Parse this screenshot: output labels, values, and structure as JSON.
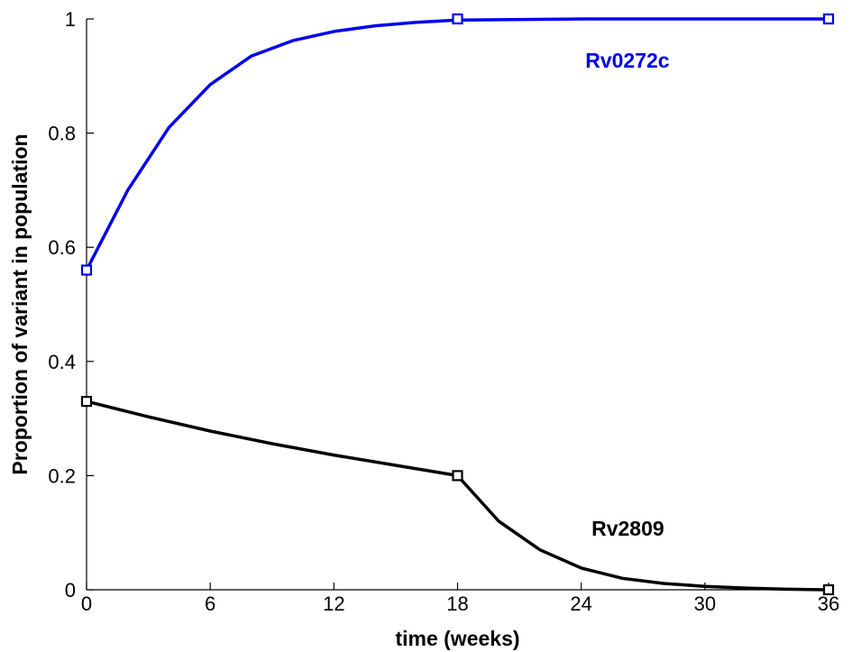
{
  "chart_data": {
    "type": "line",
    "title": "",
    "xlabel": "time (weeks)",
    "ylabel": "Proportion of variant in population",
    "xlim": [
      0,
      36
    ],
    "ylim": [
      0,
      1
    ],
    "xticks": [
      0,
      6,
      12,
      18,
      24,
      30,
      36
    ],
    "yticks": [
      0,
      0.2,
      0.4,
      0.6,
      0.8,
      1
    ],
    "ytick_labels": [
      "0",
      "0.2",
      "0.4",
      "0.6",
      "0.8",
      "1"
    ],
    "grid": false,
    "series": [
      {
        "name": "Rv0272c",
        "color": "#0000ee",
        "markers": {
          "x": [
            0,
            18,
            36
          ],
          "y": [
            0.56,
            1.0,
            1.0
          ]
        },
        "curve": {
          "x": [
            0,
            2,
            4,
            6,
            8,
            10,
            12,
            14,
            16,
            18,
            24,
            30,
            36
          ],
          "y": [
            0.56,
            0.7,
            0.81,
            0.885,
            0.935,
            0.962,
            0.978,
            0.988,
            0.994,
            0.998,
            1.0,
            1.0,
            1.0
          ]
        }
      },
      {
        "name": "Rv2809",
        "color": "#000000",
        "markers": {
          "x": [
            0,
            18,
            36
          ],
          "y": [
            0.33,
            0.2,
            0.0
          ]
        },
        "curve": {
          "x": [
            0,
            3,
            6,
            9,
            12,
            15,
            18,
            20,
            22,
            24,
            26,
            28,
            30,
            32,
            34,
            36
          ],
          "y": [
            0.33,
            0.303,
            0.278,
            0.256,
            0.236,
            0.218,
            0.2,
            0.12,
            0.07,
            0.038,
            0.02,
            0.011,
            0.006,
            0.003,
            0.001,
            0.0
          ]
        }
      }
    ]
  }
}
